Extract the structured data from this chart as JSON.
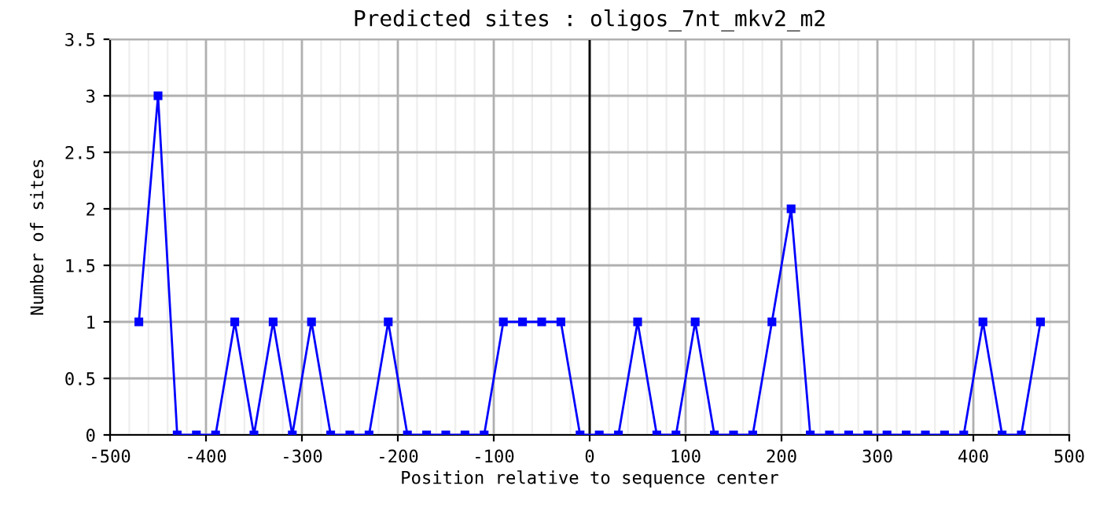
{
  "chart_data": {
    "type": "line",
    "title": "Predicted sites : oligos_7nt_mkv2_m2",
    "xlabel": "Position relative to sequence center",
    "ylabel": "Number of sites",
    "x": [
      -470,
      -450,
      -430,
      -410,
      -390,
      -370,
      -350,
      -330,
      -310,
      -290,
      -270,
      -250,
      -230,
      -210,
      -190,
      -170,
      -150,
      -130,
      -110,
      -90,
      -70,
      -50,
      -30,
      -10,
      10,
      30,
      50,
      70,
      90,
      110,
      130,
      150,
      170,
      190,
      210,
      230,
      250,
      270,
      290,
      310,
      330,
      350,
      370,
      390,
      410,
      430,
      450,
      470
    ],
    "series": [
      {
        "color": "#0000ff",
        "values": [
          1,
          3,
          0,
          0,
          0,
          1,
          0,
          1,
          0,
          1,
          0,
          0,
          0,
          1,
          0,
          0,
          0,
          0,
          0,
          1,
          1,
          1,
          1,
          0,
          0,
          0,
          1,
          0,
          0,
          1,
          0,
          0,
          0,
          1,
          2,
          0,
          0,
          0,
          0,
          0,
          0,
          0,
          0,
          0,
          1,
          0,
          0,
          1
        ]
      }
    ],
    "xlim": [
      -500,
      500
    ],
    "xticks": [
      -500,
      -400,
      -300,
      -200,
      -100,
      0,
      100,
      200,
      300,
      400,
      500
    ],
    "ylim": [
      0,
      3.5
    ],
    "yticks": [
      0,
      0.5,
      1,
      1.5,
      2,
      2.5,
      3,
      3.5
    ],
    "ref_lines": [
      {
        "axis": "x",
        "value": 0,
        "color": "#000000"
      }
    ],
    "grid": true,
    "marker": "square",
    "line_style": "solid",
    "legend": false
  }
}
